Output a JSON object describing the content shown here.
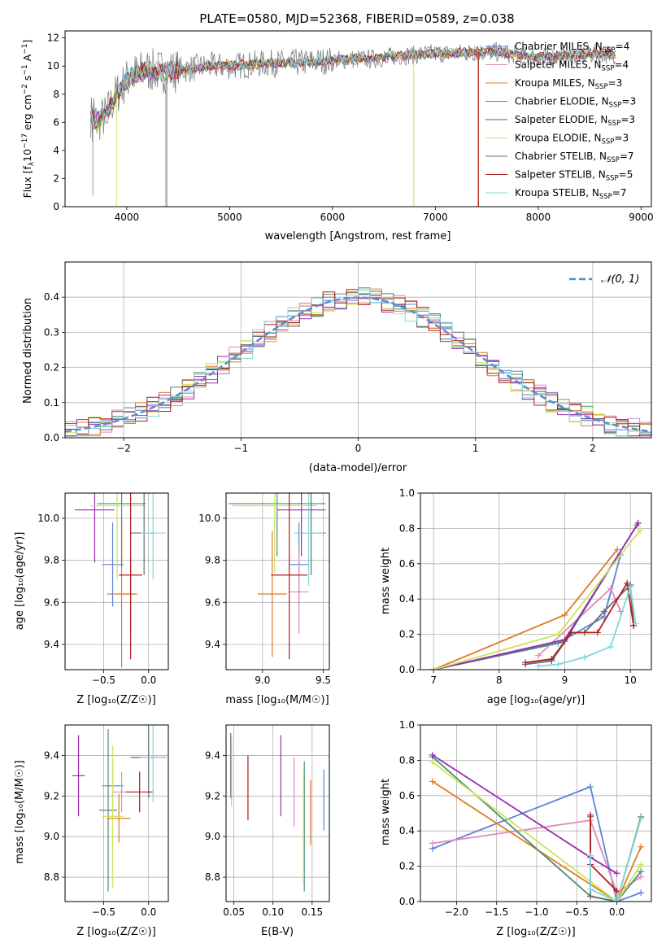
{
  "colors": {
    "chabrier_miles": "#5b84d4",
    "salpeter_miles": "#e388b9",
    "kroupa_miles": "#e07b24",
    "chabrier_elodie": "#4b8f72",
    "salpeter_elodie": "#9c2bb0",
    "kroupa_elodie": "#cde25c",
    "chabrier_stelib": "#6b6b6b",
    "salpeter_stelib": "#b01b1b",
    "kroupa_stelib": "#7fd8dc",
    "data_grey": "#808080",
    "normal_dash": "#5b8bd0",
    "grid": "#b0b0b0"
  },
  "chart_data": [
    {
      "id": "spectrum",
      "type": "line",
      "title": "PLATE=0580, MJD=52368, FIBERID=0589, z=0.038",
      "xlabel": "wavelength [Angstrom, rest frame]",
      "ylabel": "Flux [f",
      "ylabel_sub": "λ",
      "ylabel_rest": "10",
      "ylabel_sup1": "−17",
      "ylabel_tail": " erg cm",
      "ylabel_sup2": "−2",
      "ylabel_tail2": " s",
      "ylabel_sup3": "−1",
      "ylabel_tail3": " A",
      "ylabel_sup4": "−1",
      "ylabel_end": "]",
      "xlim": [
        3400,
        9100
      ],
      "ylim": [
        0,
        12.5
      ],
      "xticks": [
        4000,
        5000,
        6000,
        7000,
        8000,
        9000
      ],
      "yticks": [
        0,
        2,
        4,
        6,
        8,
        10,
        12
      ],
      "grid": false,
      "legend_position": "right",
      "continuum": {
        "x": [
          3650,
          3700,
          3800,
          3900,
          4000,
          4100,
          4200,
          4400,
          4600,
          4800,
          5000,
          5200,
          5400,
          5600,
          5800,
          6000,
          6200,
          6400,
          6600,
          6800,
          7000,
          7200,
          7400,
          7600,
          7800,
          8000,
          8200,
          8400,
          8600,
          8800
        ],
        "y": [
          6.5,
          6.0,
          6.5,
          8.0,
          9.0,
          9.5,
          9.7,
          9.6,
          9.8,
          10.0,
          10.0,
          10.1,
          10.2,
          10.2,
          10.3,
          10.4,
          10.5,
          10.5,
          10.7,
          10.8,
          10.9,
          10.9,
          11.0,
          11.0,
          10.8,
          10.6,
          10.7,
          10.8,
          10.9,
          10.8
        ]
      },
      "series": [
        {
          "name": "Chabrier MILES, N",
          "sub": "SSP",
          "count": "=4",
          "color_key": "chabrier_miles"
        },
        {
          "name": "Salpeter MILES, N",
          "sub": "SSP",
          "count": "=4",
          "color_key": "salpeter_miles"
        },
        {
          "name": "Kroupa MILES, N",
          "sub": "SSP",
          "count": "=3",
          "color_key": "kroupa_miles"
        },
        {
          "name": "Chabrier ELODIE, N",
          "sub": "SSP",
          "count": "=3",
          "color_key": "chabrier_elodie"
        },
        {
          "name": "Salpeter ELODIE, N",
          "sub": "SSP",
          "count": "=3",
          "color_key": "salpeter_elodie"
        },
        {
          "name": "Kroupa ELODIE, N",
          "sub": "SSP",
          "count": "=3",
          "color_key": "kroupa_elodie"
        },
        {
          "name": "Chabrier STELIB, N",
          "sub": "SSP",
          "count": "=7",
          "color_key": "chabrier_stelib"
        },
        {
          "name": "Salpeter STELIB, N",
          "sub": "SSP",
          "count": "=5",
          "color_key": "salpeter_stelib"
        },
        {
          "name": "Kroupa STELIB, N",
          "sub": "SSP",
          "count": "=7",
          "color_key": "kroupa_stelib"
        }
      ]
    },
    {
      "id": "residuals",
      "type": "histogram",
      "xlabel": "(data-model)/error",
      "ylabel": "Normed distribution",
      "xlim": [
        -2.5,
        2.5
      ],
      "ylim": [
        0,
        0.5
      ],
      "xticks": [
        -2,
        -1,
        0,
        1,
        2
      ],
      "yticks": [
        0.0,
        0.1,
        0.2,
        0.3,
        0.4
      ],
      "grid": true,
      "legend_position": "top-right",
      "normal_label": "𝒩(0, 1)",
      "bins": 50
    },
    {
      "id": "age_vs_Z",
      "type": "errorbar",
      "xlabel": "Z [log₁₀(Z/Z☉)]",
      "ylabel": "age  [log₁₀(age/yr)]",
      "xlim": [
        -0.93,
        0.22
      ],
      "ylim": [
        9.28,
        10.12
      ],
      "xticks": [
        -0.5,
        0.0
      ],
      "xticklabels": [
        "−0.5",
        "0.0"
      ],
      "yticks": [
        9.4,
        9.6,
        9.8,
        10.0
      ],
      "grid": true,
      "points": [
        {
          "key": "chabrier_miles",
          "x": -0.4,
          "xerr": 0.12,
          "y": 9.78,
          "yerr": 0.2
        },
        {
          "key": "salpeter_miles",
          "x": -0.2,
          "xerr": 0.08,
          "y": 9.64,
          "yerr": 0.18
        },
        {
          "key": "kroupa_miles",
          "x": -0.3,
          "xerr": 0.16,
          "y": 9.64,
          "yerr": 0.35
        },
        {
          "key": "chabrier_elodie",
          "x": -0.3,
          "xerr": 0.27,
          "y": 10.07,
          "yerr": 0.3
        },
        {
          "key": "salpeter_elodie",
          "x": -0.6,
          "xerr": 0.22,
          "y": 10.04,
          "yerr": 0.25
        },
        {
          "key": "kroupa_elodie",
          "x": -0.35,
          "xerr": 0.3,
          "y": 10.06,
          "yerr": 0.35
        },
        {
          "key": "chabrier_stelib",
          "x": -0.05,
          "xerr": 0.15,
          "y": 9.93,
          "yerr": 0.2
        },
        {
          "key": "salpeter_stelib",
          "x": -0.2,
          "xerr": 0.13,
          "y": 9.73,
          "yerr": 0.4
        },
        {
          "key": "kroupa_stelib",
          "x": 0.05,
          "xerr": 0.14,
          "y": 9.93,
          "yerr": 0.22
        }
      ]
    },
    {
      "id": "age_vs_mass",
      "type": "errorbar",
      "xlabel": "mass [log₁₀(M/M☉)]",
      "ylabel": "",
      "xlim": [
        8.7,
        9.55
      ],
      "ylim": [
        9.28,
        10.12
      ],
      "xticks": [
        9.0,
        9.5
      ],
      "xticklabels": [
        "9.0",
        "9.5"
      ],
      "yticks": [
        9.4,
        9.6,
        9.8,
        10.0
      ],
      "grid": true,
      "points": [
        {
          "key": "chabrier_miles",
          "x": 9.3,
          "xerr": 0.08,
          "y": 9.78,
          "yerr": 0.2
        },
        {
          "key": "salpeter_miles",
          "x": 9.3,
          "xerr": 0.08,
          "y": 9.65,
          "yerr": 0.2
        },
        {
          "key": "kroupa_miles",
          "x": 9.08,
          "xerr": 0.12,
          "y": 9.64,
          "yerr": 0.3
        },
        {
          "key": "chabrier_elodie",
          "x": 9.12,
          "xerr": 0.4,
          "y": 10.07,
          "yerr": 0.25
        },
        {
          "key": "salpeter_elodie",
          "x": 9.32,
          "xerr": 0.2,
          "y": 10.04,
          "yerr": 0.22
        },
        {
          "key": "kroupa_elodie",
          "x": 9.1,
          "xerr": 0.35,
          "y": 10.06,
          "yerr": 0.32
        },
        {
          "key": "chabrier_stelib",
          "x": 9.4,
          "xerr": 0.12,
          "y": 9.93,
          "yerr": 0.2
        },
        {
          "key": "salpeter_stelib",
          "x": 9.22,
          "xerr": 0.15,
          "y": 9.73,
          "yerr": 0.4
        },
        {
          "key": "kroupa_stelib",
          "x": 9.38,
          "xerr": 0.12,
          "y": 9.93,
          "yerr": 0.25
        }
      ]
    },
    {
      "id": "massweight_vs_age",
      "type": "line",
      "xlabel": "age  [log₁₀(age/yr)]",
      "ylabel": "mass weight",
      "xlim": [
        6.8,
        10.32
      ],
      "ylim": [
        0,
        1.0
      ],
      "xticks": [
        7,
        8,
        9,
        10
      ],
      "yticks": [
        0.0,
        0.2,
        0.4,
        0.6,
        0.8,
        1.0
      ],
      "grid": true,
      "series": [
        {
          "key": "chabrier_miles",
          "x": [
            7.0,
            8.9,
            9.6,
            9.85
          ],
          "y": [
            0.0,
            0.15,
            0.3,
            0.65
          ]
        },
        {
          "key": "salpeter_miles",
          "x": [
            8.6,
            9.7,
            9.85
          ],
          "y": [
            0.08,
            0.46,
            0.33
          ]
        },
        {
          "key": "kroupa_miles",
          "x": [
            7.0,
            9.0,
            9.8
          ],
          "y": [
            0.0,
            0.31,
            0.68
          ]
        },
        {
          "key": "chabrier_elodie",
          "x": [
            7.0,
            9.0,
            10.1
          ],
          "y": [
            0.0,
            0.16,
            0.82
          ]
        },
        {
          "key": "salpeter_elodie",
          "x": [
            7.0,
            9.0,
            10.12
          ],
          "y": [
            0.0,
            0.17,
            0.83
          ]
        },
        {
          "key": "kroupa_elodie",
          "x": [
            7.0,
            8.9,
            10.15
          ],
          "y": [
            0.0,
            0.2,
            0.79
          ]
        },
        {
          "key": "chabrier_stelib",
          "x": [
            8.4,
            8.8,
            9.1,
            9.3,
            9.6,
            10.0,
            10.05
          ],
          "y": [
            0.03,
            0.05,
            0.21,
            0.21,
            0.33,
            0.48,
            0.25
          ]
        },
        {
          "key": "salpeter_stelib",
          "x": [
            8.4,
            8.8,
            9.1,
            9.5,
            9.95,
            10.05
          ],
          "y": [
            0.04,
            0.06,
            0.21,
            0.21,
            0.49,
            0.25
          ]
        },
        {
          "key": "kroupa_stelib",
          "x": [
            8.6,
            8.9,
            9.3,
            9.7,
            10.0,
            10.08
          ],
          "y": [
            0.02,
            0.03,
            0.07,
            0.13,
            0.47,
            0.26
          ]
        }
      ]
    },
    {
      "id": "mass_vs_Z",
      "type": "errorbar",
      "xlabel": "Z [log₁₀(Z/Z☉)]",
      "ylabel": "mass [log₁₀(M/M☉)]",
      "xlim": [
        -0.93,
        0.22
      ],
      "ylim": [
        8.68,
        9.55
      ],
      "xticks": [
        -0.5,
        0.0
      ],
      "xticklabels": [
        "−0.5",
        "0.0"
      ],
      "yticks": [
        8.8,
        9.0,
        9.2,
        9.4
      ],
      "grid": true,
      "points": [
        {
          "key": "chabrier_miles",
          "x": -0.4,
          "xerr": 0.12,
          "y": 9.25,
          "yerr": 0.12
        },
        {
          "key": "salpeter_miles",
          "x": -0.3,
          "xerr": 0.1,
          "y": 9.22,
          "yerr": 0.1
        },
        {
          "key": "kroupa_miles",
          "x": -0.33,
          "xerr": 0.13,
          "y": 9.09,
          "yerr": 0.12
        },
        {
          "key": "chabrier_elodie",
          "x": -0.45,
          "xerr": 0.1,
          "y": 9.13,
          "yerr": 0.4
        },
        {
          "key": "salpeter_elodie",
          "x": -0.78,
          "xerr": 0.07,
          "y": 9.3,
          "yerr": 0.2
        },
        {
          "key": "kroupa_elodie",
          "x": -0.4,
          "xerr": 0.12,
          "y": 9.1,
          "yerr": 0.35
        },
        {
          "key": "chabrier_stelib",
          "x": 0.0,
          "xerr": 0.2,
          "y": 9.39,
          "yerr": 0.2
        },
        {
          "key": "salpeter_stelib",
          "x": -0.1,
          "xerr": 0.15,
          "y": 9.22,
          "yerr": 0.1
        },
        {
          "key": "kroupa_stelib",
          "x": 0.05,
          "xerr": 0.15,
          "y": 9.39,
          "yerr": 0.22
        }
      ]
    },
    {
      "id": "mass_vs_ebv",
      "type": "errorbar",
      "xlabel": "E(B-V)",
      "ylabel": "",
      "xlim": [
        0.04,
        0.172
      ],
      "ylim": [
        8.68,
        9.55
      ],
      "xticks": [
        0.05,
        0.1,
        0.15
      ],
      "xticklabels": [
        "0.05",
        "0.10",
        "0.15"
      ],
      "yticks": [
        8.8,
        9.0,
        9.2,
        9.4
      ],
      "grid": true,
      "points": [
        {
          "key": "chabrier_miles",
          "x": 0.165,
          "y": 9.18,
          "yerr": 0.15
        },
        {
          "key": "salpeter_miles",
          "x": 0.127,
          "y": 9.22,
          "yerr": 0.17
        },
        {
          "key": "kroupa_miles",
          "x": 0.148,
          "y": 9.12,
          "yerr": 0.16
        },
        {
          "key": "chabrier_elodie",
          "x": 0.14,
          "y": 9.05,
          "yerr": 0.32
        },
        {
          "key": "salpeter_elodie",
          "x": 0.11,
          "y": 9.3,
          "yerr": 0.2
        },
        {
          "key": "kroupa_elodie",
          "x": 0.139,
          "y": 9.05,
          "yerr": 0.28
        },
        {
          "key": "chabrier_stelib",
          "x": 0.046,
          "y": 9.35,
          "yerr": 0.16
        },
        {
          "key": "salpeter_stelib",
          "x": 0.068,
          "y": 9.24,
          "yerr": 0.16
        },
        {
          "key": "kroupa_stelib",
          "x": 0.047,
          "y": 9.32,
          "yerr": 0.17
        }
      ]
    },
    {
      "id": "massweight_vs_Z",
      "type": "line",
      "xlabel": "Z [log₁₀(Z/Z☉)]",
      "ylabel": "mass weight",
      "xlim": [
        -2.45,
        0.43
      ],
      "ylim": [
        0,
        1.0
      ],
      "xticks": [
        -2.0,
        -1.5,
        -1.0,
        -0.5,
        0.0
      ],
      "xticklabels": [
        "−2.0",
        "−1.5",
        "−1.0",
        "−0.5",
        "0.0"
      ],
      "yticks": [
        0.0,
        0.2,
        0.4,
        0.6,
        0.8,
        1.0
      ],
      "grid": true,
      "series": [
        {
          "key": "chabrier_miles",
          "x": [
            -2.3,
            -0.33,
            0.0,
            0.3
          ],
          "y": [
            0.3,
            0.65,
            0.0,
            0.05
          ]
        },
        {
          "key": "salpeter_miles",
          "x": [
            -2.3,
            -0.33,
            0.0,
            0.3
          ],
          "y": [
            0.33,
            0.46,
            0.05,
            0.14
          ]
        },
        {
          "key": "kroupa_miles",
          "x": [
            -2.3,
            0.0,
            0.3
          ],
          "y": [
            0.68,
            0.0,
            0.31
          ]
        },
        {
          "key": "chabrier_elodie",
          "x": [
            -2.3,
            -0.33,
            0.0,
            0.3
          ],
          "y": [
            0.82,
            0.03,
            0.0,
            0.17
          ]
        },
        {
          "key": "salpeter_elodie",
          "x": [
            -2.3,
            -0.33,
            0.0
          ],
          "y": [
            0.83,
            0.25,
            0.16
          ]
        },
        {
          "key": "kroupa_elodie",
          "x": [
            -2.3,
            0.0,
            0.3
          ],
          "y": [
            0.79,
            0.0,
            0.21
          ]
        },
        {
          "key": "chabrier_stelib",
          "x": [
            -0.33,
            -0.33,
            0.0,
            0.3
          ],
          "y": [
            0.48,
            0.03,
            0.0,
            0.48
          ]
        },
        {
          "key": "salpeter_stelib",
          "x": [
            -0.33,
            -0.33,
            0.0
          ],
          "y": [
            0.49,
            0.21,
            0.06
          ]
        },
        {
          "key": "kroupa_stelib",
          "x": [
            -0.33,
            -0.33,
            0.0,
            0.3
          ],
          "y": [
            0.26,
            0.07,
            0.0,
            0.47
          ]
        }
      ]
    }
  ]
}
